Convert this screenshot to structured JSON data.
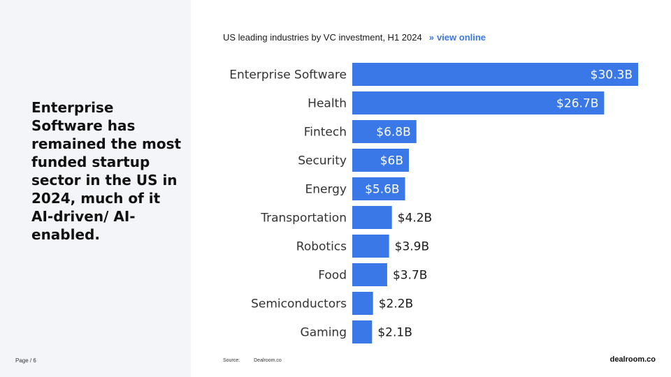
{
  "headline": "Enterprise Software has remained the most funded startup sector in the US in 2024, much of it AI-driven/ AI-enabled.",
  "page_label": "Page / 6",
  "chart_header": {
    "title": "US leading industries by VC investment, H1 2024",
    "separator": "»",
    "link_label": "view online"
  },
  "footer": {
    "source_label": "Source:",
    "source_value": "Dealroom.co",
    "brand": "dealroom.co"
  },
  "colors": {
    "bar": "#3b78e7",
    "label_inside": "#ffffff",
    "label_outside": "#1a1a1a"
  },
  "chart_data": {
    "type": "bar",
    "orientation": "horizontal",
    "unit": "$B",
    "categories": [
      "Enterprise Software",
      "Health",
      "Fintech",
      "Security",
      "Energy",
      "Transportation",
      "Robotics",
      "Food",
      "Semiconductors",
      "Gaming"
    ],
    "values": [
      30.3,
      26.7,
      6.8,
      6,
      5.6,
      4.2,
      3.9,
      3.7,
      2.2,
      2.1
    ],
    "value_labels": [
      "$30.3B",
      "$26.7B",
      "$6.8B",
      "$6B",
      "$5.6B",
      "$4.2B",
      "$3.9B",
      "$3.7B",
      "$2.2B",
      "$2.1B"
    ],
    "title": "US leading industries by VC investment, H1 2024",
    "xlabel": "",
    "ylabel": "",
    "grid": false,
    "legend": false
  }
}
